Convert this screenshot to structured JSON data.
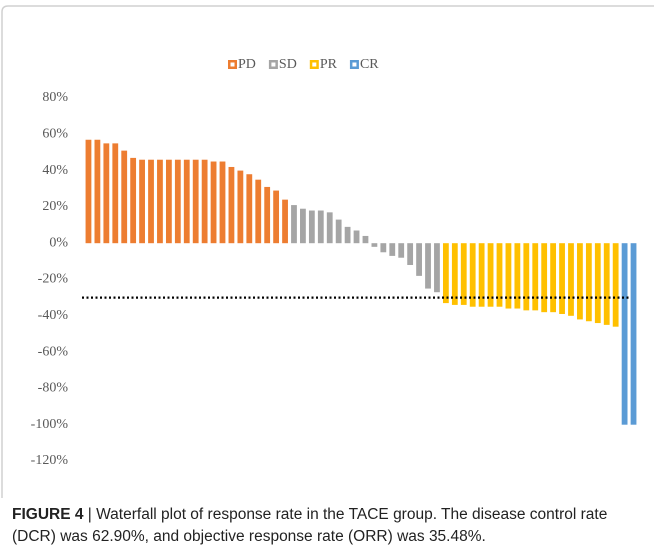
{
  "chart_data": {
    "type": "waterfall",
    "series": [
      {
        "name": "PD",
        "color": "#ed7d31",
        "values": [
          57,
          57,
          55,
          55,
          51,
          47,
          46,
          46,
          46,
          46,
          46,
          46,
          46,
          46,
          45,
          45,
          42,
          40,
          38,
          35,
          31,
          29,
          24
        ]
      },
      {
        "name": "SD",
        "color": "#a5a5a5",
        "values": [
          21,
          19,
          18,
          18,
          17,
          13,
          9,
          7,
          4,
          -2,
          -5,
          -7,
          -8,
          -12,
          -18,
          -25,
          -27
        ]
      },
      {
        "name": "PR",
        "color": "#ffc000",
        "values": [
          -33,
          -34,
          -34,
          -35,
          -35,
          -35,
          -35,
          -36,
          -36,
          -37,
          -37,
          -38,
          -38,
          -39,
          -40,
          -42,
          -43,
          -44,
          -45,
          -46
        ]
      },
      {
        "name": "CR",
        "color": "#5b9bd5",
        "values": [
          -100,
          -100
        ]
      }
    ],
    "threshold": -30,
    "ylim": [
      -120,
      80
    ],
    "yticks": [
      {
        "value": 80,
        "label": "80%"
      },
      {
        "value": 60,
        "label": "60%"
      },
      {
        "value": 40,
        "label": "40%"
      },
      {
        "value": 20,
        "label": "20%"
      },
      {
        "value": 0,
        "label": "0%"
      },
      {
        "value": -20,
        "label": "-20%"
      },
      {
        "value": -40,
        "label": "-40%"
      },
      {
        "value": -60,
        "label": "-60%"
      },
      {
        "value": -80,
        "label": "-80%"
      },
      {
        "value": -100,
        "label": "-100%"
      },
      {
        "value": -120,
        "label": "-120%"
      }
    ],
    "legend": "top"
  },
  "caption": {
    "label": "FIGURE 4",
    "text": "| Waterfall plot of response rate in the TACE group. The disease control rate (DCR) was 62.90%, and objective response rate (ORR) was 35.48%."
  }
}
